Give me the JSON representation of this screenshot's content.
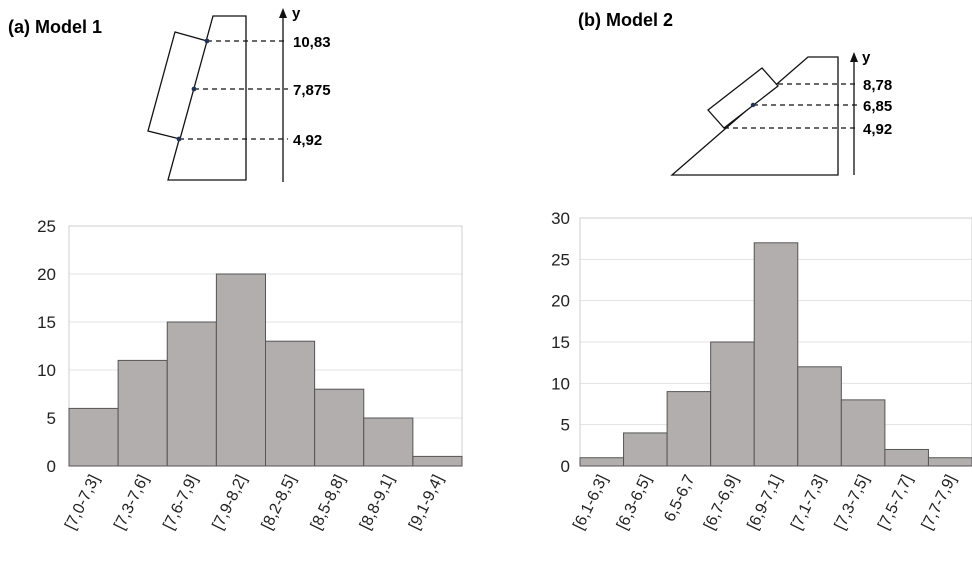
{
  "panels": [
    {
      "title": "(a) Model 1",
      "axis_letter": "y",
      "levels": [
        "10,83",
        "7,875",
        "4,92"
      ]
    },
    {
      "title": "(b) Model 2",
      "axis_letter": "y",
      "levels": [
        "8,78",
        "6,85",
        "4,92"
      ]
    }
  ],
  "chart_data": [
    {
      "type": "bar",
      "categories": [
        "[7,0-7,3]",
        "[7,3-7,6]",
        "[7,6-7,9]",
        "[7,9-8,2]",
        "[8,2-8,5]",
        "[8,5-8,8]",
        "[8,8-9,1]",
        "[9,1-9,4]"
      ],
      "values": [
        6,
        11,
        15,
        20,
        13,
        8,
        5,
        1
      ],
      "ylim": [
        0,
        25
      ],
      "yticks": [
        0,
        5,
        10,
        15,
        20,
        25
      ],
      "grid": true,
      "title": "",
      "xlabel": "",
      "ylabel": ""
    },
    {
      "type": "bar",
      "categories": [
        "[6,1-6,3]",
        "[6,3-6,5]",
        "6,5-6,7",
        "[6,7-6,9]",
        "[6,9-7,1]",
        "[7,1-7,3]",
        "[7,3-7,5]",
        "[7,5-7,7]",
        "[7,7-7,9]"
      ],
      "values": [
        1,
        4,
        9,
        15,
        27,
        12,
        8,
        2,
        1
      ],
      "ylim": [
        0,
        30
      ],
      "yticks": [
        0,
        5,
        10,
        15,
        20,
        25,
        30
      ],
      "grid": true,
      "title": "",
      "xlabel": "",
      "ylabel": ""
    }
  ],
  "colors": {
    "bar_fill": "#b3aeae",
    "bar_edge": "#555555"
  }
}
